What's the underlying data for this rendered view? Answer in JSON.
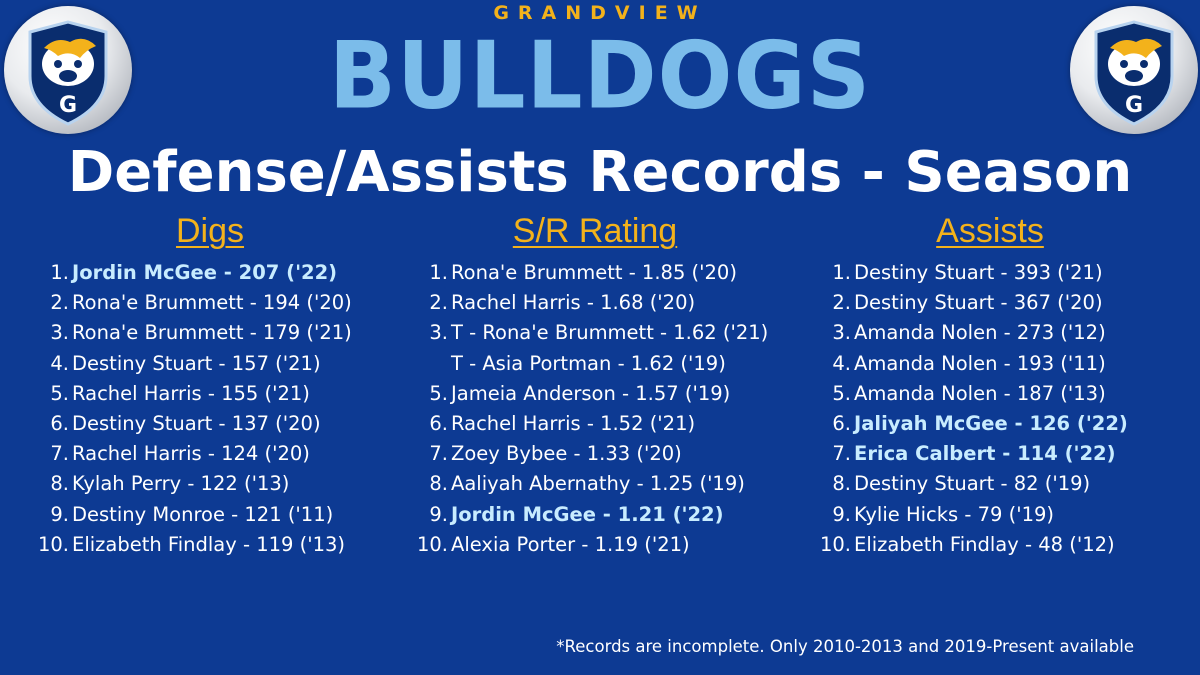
{
  "header": {
    "school": "GRANDVIEW",
    "mascot": "BULLDOGS",
    "title": "Defense/Assists Records - Season",
    "logo_letter": "G"
  },
  "colors": {
    "background": "#0d3a93",
    "accent_gold": "#f3b21b",
    "brand_light_blue": "#7bbcea",
    "highlight_text": "#c8ecff",
    "logo_shield": "#0a2d6e"
  },
  "columns": [
    {
      "heading": "Digs",
      "entries": [
        {
          "rank": "1.",
          "text": "Jordin McGee - 207 ('22)",
          "highlight": true
        },
        {
          "rank": "2.",
          "text": "Rona'e Brummett - 194 ('20)",
          "highlight": false
        },
        {
          "rank": "3.",
          "text": "Rona'e Brummett - 179 ('21)",
          "highlight": false
        },
        {
          "rank": "4.",
          "text": "Destiny Stuart - 157 ('21)",
          "highlight": false
        },
        {
          "rank": "5.",
          "text": "Rachel Harris - 155 ('21)",
          "highlight": false
        },
        {
          "rank": "6.",
          "text": "Destiny Stuart - 137 ('20)",
          "highlight": false
        },
        {
          "rank": "7.",
          "text": "Rachel Harris - 124 ('20)",
          "highlight": false
        },
        {
          "rank": "8.",
          "text": "Kylah Perry - 122 ('13)",
          "highlight": false
        },
        {
          "rank": "9.",
          "text": "Destiny Monroe - 121 ('11)",
          "highlight": false
        },
        {
          "rank": "10.",
          "text": "Elizabeth Findlay - 119 ('13)",
          "highlight": false
        }
      ]
    },
    {
      "heading": "S/R Rating",
      "entries": [
        {
          "rank": "1.",
          "text": "Rona'e Brummett - 1.85 ('20)",
          "highlight": false
        },
        {
          "rank": "2.",
          "text": "Rachel Harris - 1.68 ('20)",
          "highlight": false
        },
        {
          "rank": "3.",
          "text": "T - Rona'e Brummett - 1.62 ('21)",
          "highlight": false
        },
        {
          "rank": "",
          "text": "T - Asia Portman - 1.62 ('19)",
          "highlight": false
        },
        {
          "rank": "5.",
          "text": "Jameia Anderson - 1.57 ('19)",
          "highlight": false
        },
        {
          "rank": "6.",
          "text": "Rachel Harris - 1.52 ('21)",
          "highlight": false
        },
        {
          "rank": "7.",
          "text": "Zoey Bybee - 1.33 ('20)",
          "highlight": false
        },
        {
          "rank": "8.",
          "text": "Aaliyah Abernathy - 1.25 ('19)",
          "highlight": false
        },
        {
          "rank": "9.",
          "text": "Jordin McGee - 1.21 ('22)",
          "highlight": true
        },
        {
          "rank": "10.",
          "text": "Alexia Porter - 1.19 ('21)",
          "highlight": false
        }
      ]
    },
    {
      "heading": "Assists",
      "entries": [
        {
          "rank": "1.",
          "text": "Destiny Stuart - 393 ('21)",
          "highlight": false
        },
        {
          "rank": "2.",
          "text": "Destiny Stuart - 367 ('20)",
          "highlight": false
        },
        {
          "rank": "3.",
          "text": "Amanda Nolen - 273 ('12)",
          "highlight": false
        },
        {
          "rank": "4.",
          "text": "Amanda Nolen - 193 ('11)",
          "highlight": false
        },
        {
          "rank": "5.",
          "text": "Amanda Nolen - 187 ('13)",
          "highlight": false
        },
        {
          "rank": "6.",
          "text": "Jaliyah McGee - 126 ('22)",
          "highlight": true
        },
        {
          "rank": "7.",
          "text": "Erica Calbert - 114 ('22)",
          "highlight": true
        },
        {
          "rank": "8.",
          "text": "Destiny Stuart - 82 ('19)",
          "highlight": false
        },
        {
          "rank": "9.",
          "text": "Kylie Hicks - 79 ('19)",
          "highlight": false
        },
        {
          "rank": "10.",
          "text": "Elizabeth Findlay - 48 ('12)",
          "highlight": false
        }
      ]
    }
  ],
  "footnote": "*Records are incomplete.  Only 2010-2013  and 2019-Present available"
}
